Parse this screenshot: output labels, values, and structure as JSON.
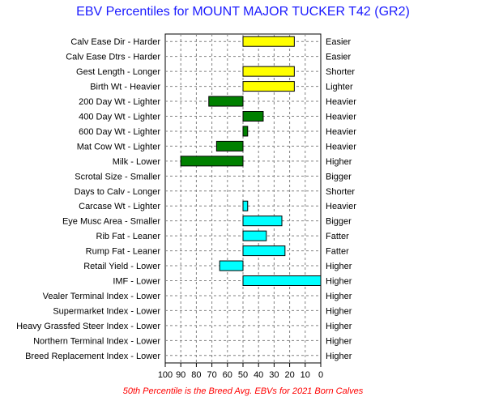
{
  "chart_data": {
    "type": "bar",
    "title": "EBV Percentiles for MOUNT MAJOR TUCKER T42 (GR2)",
    "footnote": "50th Percentile is the Breed Avg. EBVs for 2021 Born Calves",
    "x_ticks": [
      "100",
      "90",
      "80",
      "70",
      "60",
      "50",
      "40",
      "30",
      "20",
      "10",
      "0"
    ],
    "xlim": [
      100,
      0
    ],
    "baseline": 50,
    "grid": true,
    "categories": [
      {
        "left": "Calv Ease Dir - Harder",
        "right": "Easier",
        "value": 17,
        "color": "#ffff00"
      },
      {
        "left": "Calv Ease Dtrs - Harder",
        "right": "Easier",
        "value": null,
        "color": "#ffff00"
      },
      {
        "left": "Gest Length - Longer",
        "right": "Shorter",
        "value": 17,
        "color": "#ffff00"
      },
      {
        "left": "Birth Wt - Heavier",
        "right": "Lighter",
        "value": 17,
        "color": "#ffff00"
      },
      {
        "left": "200 Day Wt - Lighter",
        "right": "Heavier",
        "value": 72,
        "color": "#008000"
      },
      {
        "left": "400 Day Wt - Lighter",
        "right": "Heavier",
        "value": 37,
        "color": "#008000"
      },
      {
        "left": "600 Day Wt - Lighter",
        "right": "Heavier",
        "value": 47,
        "color": "#008000"
      },
      {
        "left": "Mat Cow Wt - Lighter",
        "right": "Heavier",
        "value": 67,
        "color": "#008000"
      },
      {
        "left": "Milk - Lower",
        "right": "Higher",
        "value": 90,
        "color": "#008000"
      },
      {
        "left": "Scrotal Size - Smaller",
        "right": "Bigger",
        "value": null,
        "color": "#008000"
      },
      {
        "left": "Days to Calv - Longer",
        "right": "Shorter",
        "value": null,
        "color": "#008000"
      },
      {
        "left": "Carcase Wt - Lighter",
        "right": "Heavier",
        "value": 47,
        "color": "#00ffff"
      },
      {
        "left": "Eye Musc Area - Smaller",
        "right": "Bigger",
        "value": 25,
        "color": "#00ffff"
      },
      {
        "left": "Rib Fat - Leaner",
        "right": "Fatter",
        "value": 35,
        "color": "#00ffff"
      },
      {
        "left": "Rump Fat - Leaner",
        "right": "Fatter",
        "value": 23,
        "color": "#00ffff"
      },
      {
        "left": "Retail Yield - Lower",
        "right": "Higher",
        "value": 65,
        "color": "#00ffff"
      },
      {
        "left": "IMF - Lower",
        "right": "Higher",
        "value": 0,
        "color": "#00ffff"
      },
      {
        "left": "Vealer Terminal Index - Lower",
        "right": "Higher",
        "value": null,
        "color": "#00ffff"
      },
      {
        "left": "Supermarket Index - Lower",
        "right": "Higher",
        "value": null,
        "color": "#00ffff"
      },
      {
        "left": "Heavy Grassfed Steer Index - Lower",
        "right": "Higher",
        "value": null,
        "color": "#00ffff"
      },
      {
        "left": "Northern Terminal Index - Lower",
        "right": "Higher",
        "value": null,
        "color": "#00ffff"
      },
      {
        "left": "Breed Replacement Index - Lower",
        "right": "Higher",
        "value": null,
        "color": "#00ffff"
      }
    ]
  }
}
